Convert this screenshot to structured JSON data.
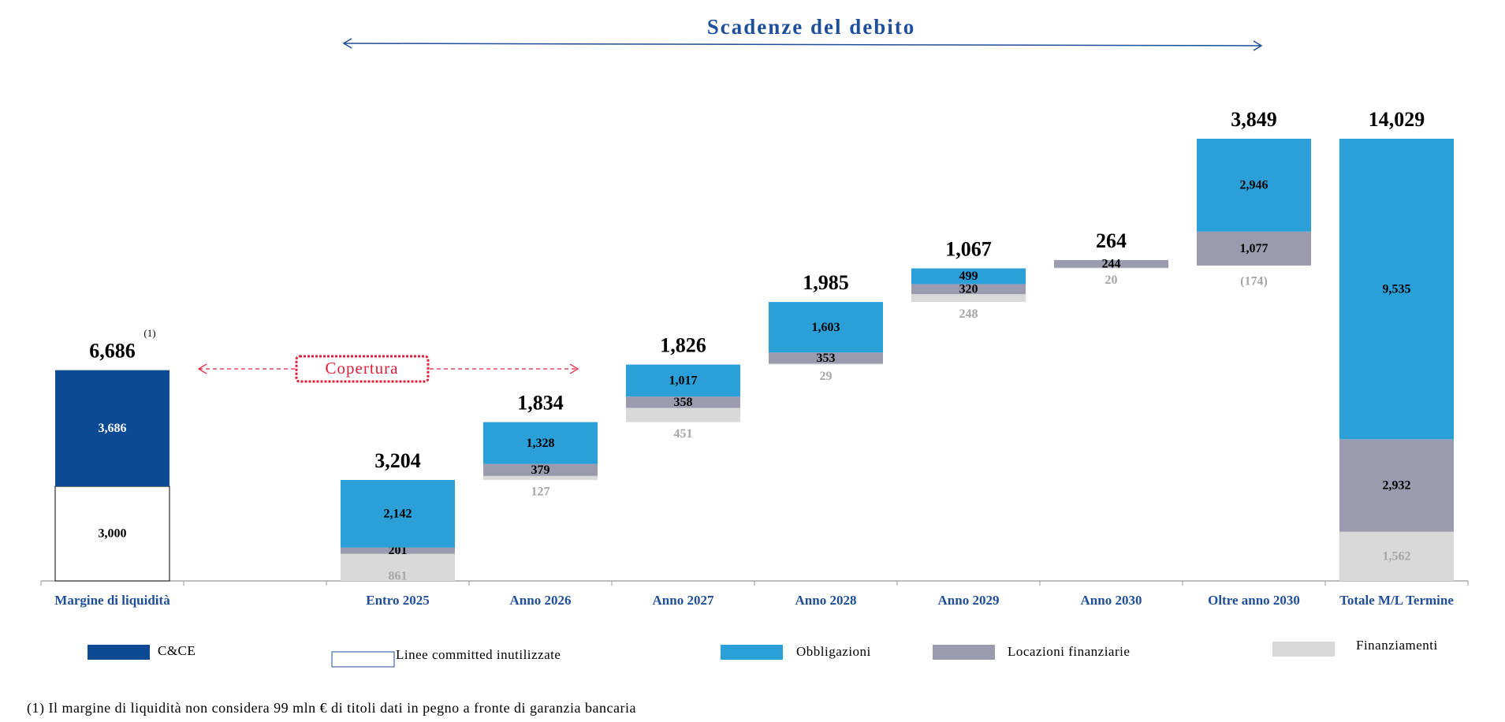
{
  "chart_data": {
    "type": "waterfall",
    "title": "Scadenze del debito",
    "annotations": {
      "coverage": "Copertura",
      "note_mark": "(1)",
      "footnote": "(1) Il margine di liquidità non considera 99 mln € di titoli dati in pegno a fronte di garanzia bancaria"
    },
    "categories": [
      "Margine di liquidità",
      null,
      "Entro 2025",
      "Anno 2026",
      "Anno 2027",
      "Anno 2028",
      "Anno 2029",
      "Anno 2030",
      "Oltre anno 2030",
      "Totale M/L Termine"
    ],
    "totals": [
      6686,
      null,
      3204,
      1834,
      1826,
      1985,
      1067,
      264,
      3849,
      14029
    ],
    "total_labels": [
      "6,686",
      null,
      "3,204",
      "1,834",
      "1,826",
      "1,985",
      "1,067",
      "264",
      "3,849",
      "14,029"
    ],
    "series": [
      {
        "name": "Linee committed inutilizzate",
        "color": "#ffffff",
        "values": [
          3000,
          null,
          null,
          null,
          null,
          null,
          null,
          null,
          null,
          null
        ],
        "value_labels": [
          "3,000",
          null,
          null,
          null,
          null,
          null,
          null,
          null,
          null,
          null
        ]
      },
      {
        "name": "C&CE",
        "color": "#0d4a94",
        "values": [
          3686,
          null,
          null,
          null,
          null,
          null,
          null,
          null,
          null,
          null
        ],
        "value_labels": [
          "3,686",
          null,
          null,
          null,
          null,
          null,
          null,
          null,
          null,
          null
        ]
      },
      {
        "name": "Finanziamenti",
        "color": "#d9d9d9",
        "values": [
          null,
          null,
          861,
          127,
          451,
          29,
          248,
          20,
          -174,
          1562
        ],
        "value_labels": [
          null,
          null,
          "861",
          "127",
          "451",
          "29",
          "248",
          "20",
          "(174)",
          "1,562"
        ]
      },
      {
        "name": "Locazioni finanziarie",
        "color": "#9b9bb0",
        "values": [
          null,
          null,
          201,
          379,
          358,
          353,
          320,
          244,
          1077,
          2932
        ],
        "value_labels": [
          null,
          null,
          "201",
          "379",
          "358",
          "353",
          "320",
          "244",
          "1,077",
          "2,932"
        ]
      },
      {
        "name": "Obbligazioni",
        "color": "#2a9fd8",
        "values": [
          null,
          null,
          2142,
          1328,
          1017,
          1603,
          499,
          null,
          2946,
          9535
        ],
        "value_labels": [
          null,
          null,
          "2,142",
          "1,328",
          "1,017",
          "1,603",
          "499",
          null,
          "2,946",
          "9,535"
        ]
      }
    ]
  }
}
